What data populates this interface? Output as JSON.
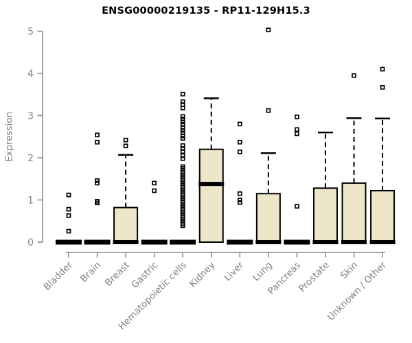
{
  "chart_data": {
    "type": "boxplot",
    "title": "ENSG00000219135 - RP11-129H15.3",
    "ylabel": "Expression",
    "xlabel": "",
    "ylim": [
      0,
      5
    ],
    "yticks": [
      0,
      1,
      2,
      3,
      4,
      5
    ],
    "grid": false,
    "legend": null,
    "categories": [
      "Bladder",
      "Brain",
      "Breast",
      "Gastric",
      "Hematopoietic cells",
      "Kidney",
      "Liver",
      "Lung",
      "Pancreas",
      "Prostate",
      "Skin",
      "Unknown / Other"
    ],
    "boxes": [
      {
        "category": "Bladder",
        "q1": 0,
        "median": 0,
        "q3": 0,
        "whisker_low": 0,
        "whisker_high": 0,
        "outliers": [
          1.12,
          0.78,
          0.63,
          0.26
        ]
      },
      {
        "category": "Brain",
        "q1": 0,
        "median": 0,
        "q3": 0,
        "whisker_low": 0,
        "whisker_high": 0,
        "outliers": [
          2.54,
          2.37,
          1.46,
          1.4,
          0.97,
          0.93
        ]
      },
      {
        "category": "Breast",
        "q1": 0,
        "median": 0,
        "q3": 0.82,
        "whisker_low": 0,
        "whisker_high": 2.07,
        "outliers": [
          2.42,
          2.28
        ]
      },
      {
        "category": "Gastric",
        "q1": 0,
        "median": 0,
        "q3": 0,
        "whisker_low": 0,
        "whisker_high": 0,
        "outliers": [
          1.4,
          1.22
        ]
      },
      {
        "category": "Hematopoietic cells",
        "q1": 0,
        "median": 0,
        "q3": 0,
        "whisker_low": 0,
        "whisker_high": 0,
        "outliers": [
          3.51,
          3.33,
          3.26,
          3.18,
          2.98,
          2.92,
          2.85,
          2.79,
          2.72,
          2.65,
          2.59,
          2.52,
          2.46,
          2.29,
          2.22,
          2.15,
          2.05,
          1.98,
          1.79,
          1.75,
          1.71,
          1.67,
          1.63,
          1.59,
          1.55,
          1.51,
          1.47,
          1.43,
          1.39,
          1.35,
          1.31,
          1.27,
          1.23,
          1.19,
          1.15,
          1.11,
          1.07,
          1.03,
          0.99,
          0.95,
          0.91,
          0.87,
          0.83,
          0.79,
          0.75,
          0.71,
          0.67,
          0.63,
          0.59,
          0.55,
          0.51,
          0.47,
          0.43,
          0.39
        ]
      },
      {
        "category": "Kidney",
        "q1": 0,
        "median": 1.38,
        "q3": 2.2,
        "whisker_low": 0,
        "whisker_high": 3.41,
        "outliers": []
      },
      {
        "category": "Liver",
        "q1": 0,
        "median": 0,
        "q3": 0,
        "whisker_low": 0,
        "whisker_high": 0,
        "outliers": [
          2.8,
          2.37,
          2.14,
          1.15,
          1.0,
          0.94
        ]
      },
      {
        "category": "Lung",
        "q1": 0,
        "median": 0,
        "q3": 1.15,
        "whisker_low": 0,
        "whisker_high": 2.11,
        "outliers": [
          5.03,
          3.12
        ]
      },
      {
        "category": "Pancreas",
        "q1": 0,
        "median": 0,
        "q3": 0,
        "whisker_low": 0,
        "whisker_high": 0,
        "outliers": [
          2.97,
          2.67,
          2.57,
          0.85
        ]
      },
      {
        "category": "Prostate",
        "q1": 0,
        "median": 0,
        "q3": 1.28,
        "whisker_low": 0,
        "whisker_high": 2.6,
        "outliers": []
      },
      {
        "category": "Skin",
        "q1": 0,
        "median": 0,
        "q3": 1.4,
        "whisker_low": 0,
        "whisker_high": 2.94,
        "outliers": [
          3.95
        ]
      },
      {
        "category": "Unknown / Other",
        "q1": 0,
        "median": 0,
        "q3": 1.22,
        "whisker_low": 0,
        "whisker_high": 2.93,
        "outliers": [
          4.1,
          3.67
        ]
      }
    ],
    "style": {
      "box_fill": "#ede6c8",
      "box_border": "#000000",
      "median_color": "#000000",
      "whisker_color": "#000000",
      "outlier_color": "#000000",
      "axis_color": "#888888",
      "tick_label_color": "#808080",
      "title_color": "#000000",
      "background": "#ffffff"
    }
  }
}
